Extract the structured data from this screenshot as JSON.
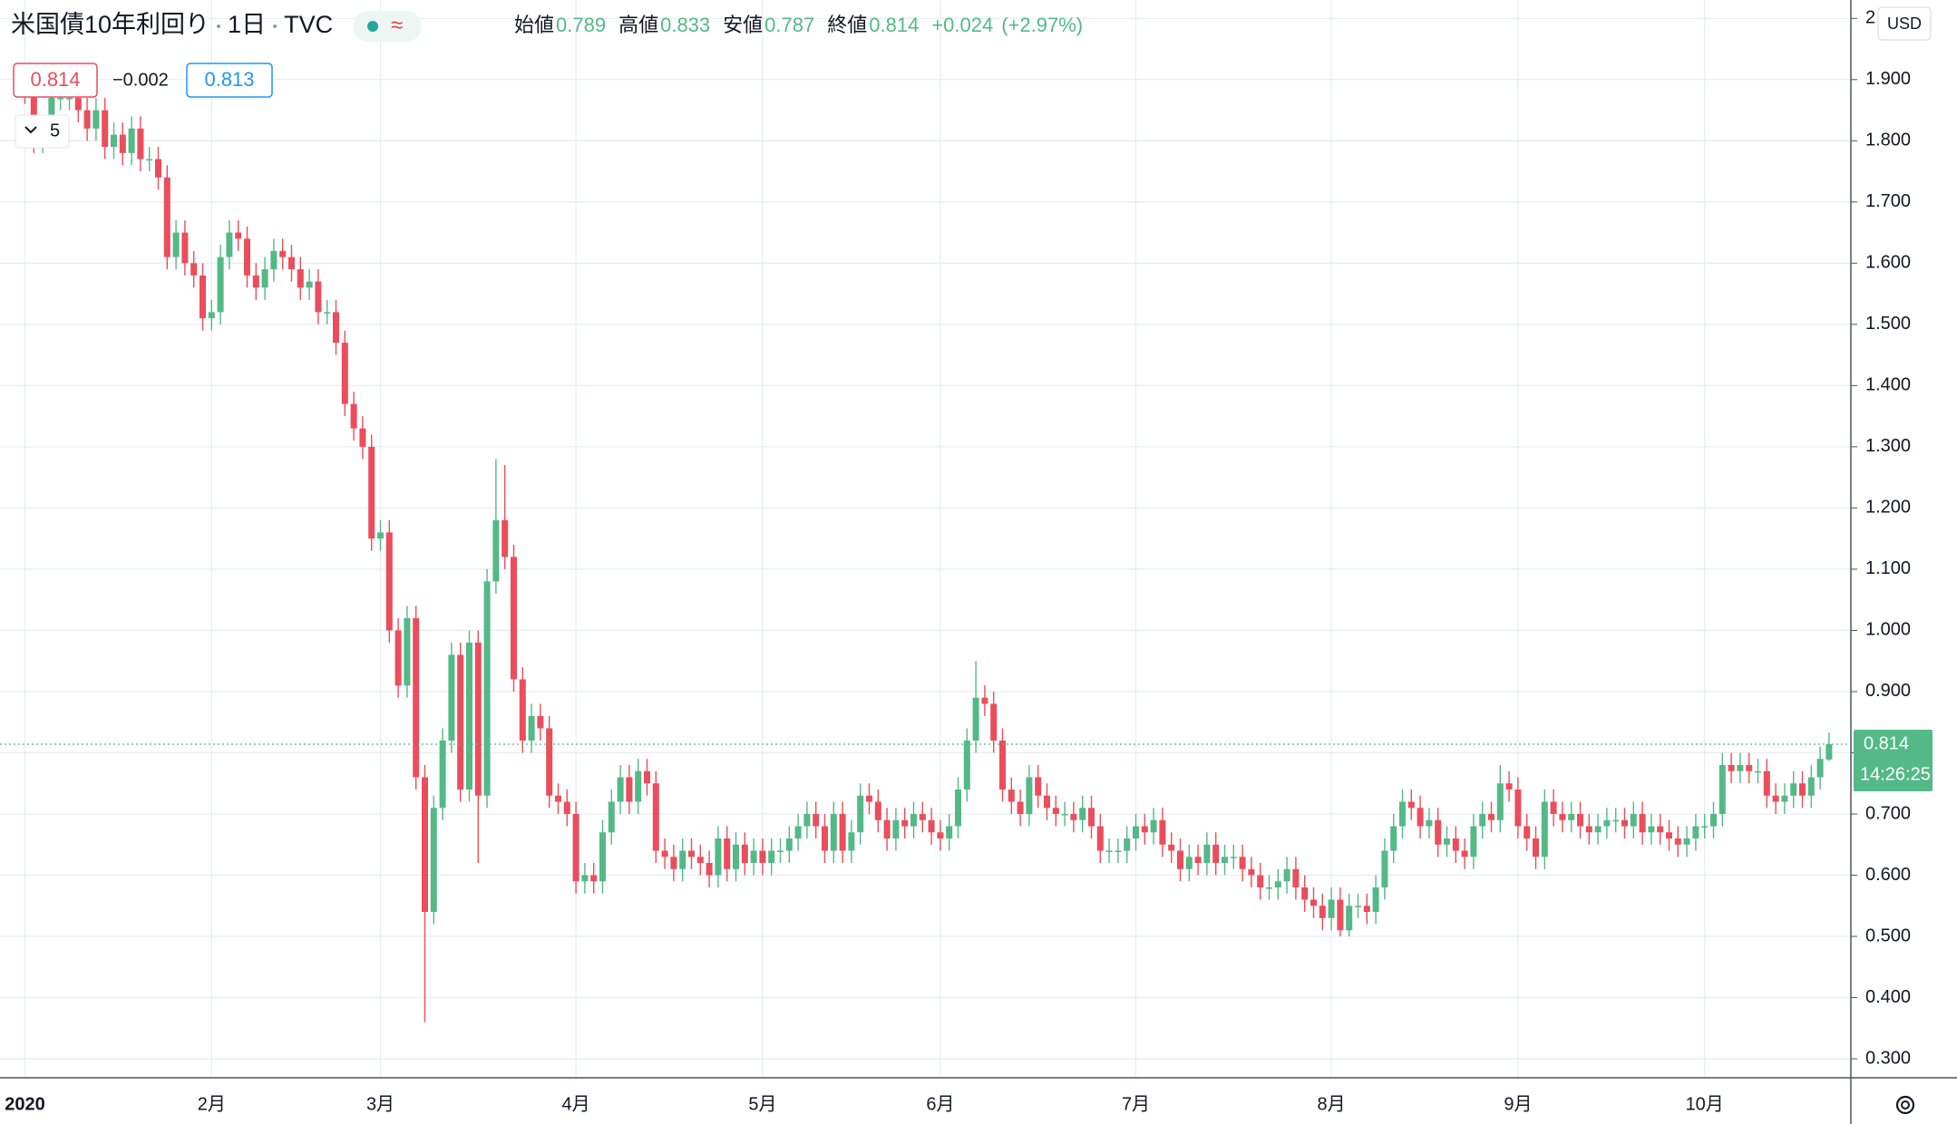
{
  "header": {
    "symbol": "米国債10年利回り",
    "interval": "1日",
    "source": "TVC",
    "open_label": "始値",
    "high_label": "高値",
    "low_label": "安値",
    "close_label": "終値",
    "change": "+0.024",
    "change_pct": "(+2.97%)",
    "spread": "−0.002",
    "ask": 0.813,
    "lines": 5,
    "currency": "USD",
    "countdown": "14:26:25"
  },
  "chart_data": {
    "type": "candlestick",
    "up_color": "#53b987",
    "down_color": "#eb4d5c",
    "grid": true,
    "ylim": [
      0.269,
      2.03
    ],
    "yticks": [
      {
        "value": 0.3,
        "label": "0.300"
      },
      {
        "value": 0.4,
        "label": "0.400"
      },
      {
        "value": 0.5,
        "label": "0.500"
      },
      {
        "value": 0.6,
        "label": "0.600"
      },
      {
        "value": 0.7,
        "label": "0.700"
      },
      {
        "value": 0.8,
        "label": "0.800"
      },
      {
        "value": 0.9,
        "label": "0.900"
      },
      {
        "value": 1.0,
        "label": "1.000"
      },
      {
        "value": 1.1,
        "label": "1.100"
      },
      {
        "value": 1.2,
        "label": "1.200"
      },
      {
        "value": 1.3,
        "label": "1.300"
      },
      {
        "value": 1.4,
        "label": "1.400"
      },
      {
        "value": 1.5,
        "label": "1.500"
      },
      {
        "value": 1.6,
        "label": "1.600"
      },
      {
        "value": 1.7,
        "label": "1.700"
      },
      {
        "value": 1.8,
        "label": "1.800"
      },
      {
        "value": 1.9,
        "label": "1.900"
      },
      2
    ],
    "categories": [
      "2020",
      null,
      null,
      null,
      null,
      null,
      null,
      null,
      null,
      null,
      null,
      null,
      null,
      null,
      null,
      null,
      null,
      null,
      null,
      null,
      null,
      "2月",
      null,
      null,
      null,
      null,
      null,
      null,
      null,
      null,
      null,
      null,
      null,
      null,
      null,
      null,
      null,
      null,
      null,
      null,
      "3月",
      null,
      null,
      null,
      null,
      null,
      null,
      null,
      null,
      null,
      null,
      null,
      null,
      null,
      null,
      null,
      null,
      null,
      null,
      null,
      null,
      null,
      "4月",
      null,
      null,
      null,
      null,
      null,
      null,
      null,
      null,
      null,
      null,
      null,
      null,
      null,
      null,
      null,
      null,
      null,
      null,
      null,
      null,
      "5月",
      null,
      null,
      null,
      null,
      null,
      null,
      null,
      null,
      null,
      null,
      null,
      null,
      null,
      null,
      null,
      null,
      null,
      null,
      null,
      "6月",
      null,
      null,
      null,
      null,
      null,
      null,
      null,
      null,
      null,
      null,
      null,
      null,
      null,
      null,
      null,
      null,
      null,
      null,
      null,
      null,
      null,
      "7月",
      null,
      null,
      null,
      null,
      null,
      null,
      null,
      null,
      null,
      null,
      null,
      null,
      null,
      null,
      null,
      null,
      null,
      null,
      null,
      null,
      null,
      "8月",
      null,
      null,
      null,
      null,
      null,
      null,
      null,
      null,
      null,
      null,
      null,
      null,
      null,
      null,
      null,
      null,
      null,
      null,
      null,
      null,
      "9月",
      null,
      null,
      null,
      null,
      null,
      null,
      null,
      null,
      null,
      null,
      null,
      null,
      null,
      null,
      null,
      null,
      null,
      null,
      null,
      null,
      "10月",
      null,
      null,
      null,
      null,
      null,
      null,
      null,
      null,
      null,
      null,
      null,
      null,
      null,
      null
    ],
    "open": [
      1.9,
      1.88,
      1.8,
      1.81,
      1.87,
      1.87,
      1.87,
      1.85,
      1.82,
      1.85,
      1.79,
      1.81,
      1.78,
      1.82,
      1.77,
      1.77,
      1.74,
      1.61,
      1.65,
      1.6,
      1.58,
      1.51,
      1.52,
      1.61,
      1.65,
      1.64,
      1.58,
      1.56,
      1.59,
      1.62,
      1.61,
      1.59,
      1.56,
      1.57,
      1.52,
      1.52,
      1.47,
      1.37,
      1.33,
      1.3,
      1.15,
      1.16,
      1.0,
      0.91,
      1.02,
      0.76,
      0.54,
      0.71,
      0.82,
      0.96,
      0.74,
      0.98,
      0.73,
      1.08,
      1.18,
      1.12,
      0.92,
      0.82,
      0.86,
      0.84,
      0.73,
      0.72,
      0.7,
      0.59,
      0.6,
      0.59,
      0.67,
      0.72,
      0.76,
      0.72,
      0.77,
      0.75,
      0.64,
      0.63,
      0.61,
      0.64,
      0.63,
      0.62,
      0.6,
      0.66,
      0.61,
      0.65,
      0.62,
      0.64,
      0.62,
      0.64,
      0.64,
      0.66,
      0.68,
      0.7,
      0.68,
      0.64,
      0.7,
      0.64,
      0.67,
      0.73,
      0.72,
      0.69,
      0.66,
      0.69,
      0.68,
      0.7,
      0.69,
      0.67,
      0.66,
      0.68,
      0.74,
      0.82,
      0.89,
      0.88,
      0.82,
      0.74,
      0.72,
      0.7,
      0.76,
      0.73,
      0.71,
      0.7,
      0.7,
      0.69,
      0.71,
      0.68,
      0.64,
      0.64,
      0.64,
      0.66,
      0.68,
      0.67,
      0.69,
      0.65,
      0.64,
      0.61,
      0.63,
      0.62,
      0.65,
      0.62,
      0.63,
      0.63,
      0.61,
      0.6,
      0.58,
      0.58,
      0.59,
      0.61,
      0.58,
      0.56,
      0.55,
      0.53,
      0.56,
      0.51,
      0.55,
      0.55,
      0.54,
      0.58,
      0.64,
      0.68,
      0.72,
      0.71,
      0.68,
      0.69,
      0.65,
      0.66,
      0.64,
      0.63,
      0.68,
      0.7,
      0.69,
      0.75,
      0.74,
      0.68,
      0.66,
      0.63,
      0.72,
      0.7,
      0.69,
      0.7,
      0.68,
      0.67,
      0.68,
      0.69,
      0.69,
      0.68,
      0.7,
      0.67,
      0.68,
      0.67,
      0.66,
      0.65,
      0.66,
      0.68,
      0.68,
      0.7,
      0.78,
      0.77,
      0.78,
      0.77,
      0.77,
      0.73,
      0.72,
      0.73,
      0.75,
      0.73,
      0.76,
      0.789
    ],
    "high": [
      1.92,
      1.9,
      1.83,
      1.89,
      1.89,
      1.89,
      1.89,
      1.87,
      1.87,
      1.87,
      1.83,
      1.83,
      1.84,
      1.84,
      1.79,
      1.79,
      1.76,
      1.67,
      1.67,
      1.62,
      1.6,
      1.54,
      1.63,
      1.67,
      1.67,
      1.66,
      1.6,
      1.61,
      1.64,
      1.64,
      1.63,
      1.61,
      1.59,
      1.59,
      1.54,
      1.54,
      1.49,
      1.39,
      1.35,
      1.32,
      1.18,
      1.18,
      1.02,
      1.04,
      1.04,
      0.78,
      0.73,
      0.84,
      0.98,
      0.98,
      1.0,
      1.0,
      1.1,
      1.28,
      1.27,
      1.14,
      0.94,
      0.88,
      0.88,
      0.86,
      0.75,
      0.74,
      0.72,
      0.62,
      0.62,
      0.69,
      0.74,
      0.78,
      0.78,
      0.79,
      0.79,
      0.77,
      0.66,
      0.65,
      0.66,
      0.66,
      0.65,
      0.64,
      0.68,
      0.68,
      0.67,
      0.67,
      0.66,
      0.66,
      0.66,
      0.66,
      0.68,
      0.7,
      0.72,
      0.72,
      0.7,
      0.72,
      0.72,
      0.69,
      0.75,
      0.75,
      0.74,
      0.71,
      0.71,
      0.71,
      0.72,
      0.72,
      0.71,
      0.69,
      0.7,
      0.76,
      0.84,
      0.95,
      0.91,
      0.9,
      0.84,
      0.76,
      0.74,
      0.78,
      0.78,
      0.75,
      0.73,
      0.72,
      0.72,
      0.73,
      0.73,
      0.7,
      0.66,
      0.66,
      0.68,
      0.7,
      0.7,
      0.71,
      0.71,
      0.67,
      0.66,
      0.65,
      0.65,
      0.67,
      0.67,
      0.65,
      0.65,
      0.65,
      0.63,
      0.62,
      0.6,
      0.61,
      0.63,
      0.63,
      0.6,
      0.58,
      0.57,
      0.58,
      0.58,
      0.57,
      0.57,
      0.57,
      0.6,
      0.66,
      0.7,
      0.74,
      0.74,
      0.73,
      0.71,
      0.71,
      0.68,
      0.68,
      0.66,
      0.7,
      0.72,
      0.72,
      0.78,
      0.77,
      0.76,
      0.7,
      0.68,
      0.74,
      0.74,
      0.72,
      0.72,
      0.72,
      0.7,
      0.7,
      0.71,
      0.71,
      0.71,
      0.72,
      0.72,
      0.7,
      0.7,
      0.69,
      0.68,
      0.68,
      0.7,
      0.7,
      0.72,
      0.8,
      0.8,
      0.8,
      0.8,
      0.79,
      0.79,
      0.75,
      0.75,
      0.77,
      0.77,
      0.78,
      0.81,
      0.833
    ],
    "low": [
      1.86,
      1.78,
      1.78,
      1.79,
      1.85,
      1.85,
      1.83,
      1.8,
      1.8,
      1.77,
      1.77,
      1.76,
      1.76,
      1.75,
      1.75,
      1.72,
      1.59,
      1.59,
      1.58,
      1.56,
      1.49,
      1.49,
      1.5,
      1.59,
      1.62,
      1.56,
      1.54,
      1.54,
      1.57,
      1.59,
      1.57,
      1.54,
      1.54,
      1.5,
      1.5,
      1.45,
      1.35,
      1.31,
      1.28,
      1.13,
      1.13,
      0.98,
      0.89,
      0.89,
      0.74,
      0.36,
      0.52,
      0.69,
      0.8,
      0.72,
      0.72,
      0.62,
      0.71,
      1.06,
      1.1,
      0.9,
      0.8,
      0.8,
      0.82,
      0.71,
      0.7,
      0.68,
      0.57,
      0.57,
      0.57,
      0.57,
      0.65,
      0.7,
      0.7,
      0.7,
      0.73,
      0.62,
      0.61,
      0.59,
      0.59,
      0.61,
      0.6,
      0.58,
      0.58,
      0.59,
      0.59,
      0.6,
      0.6,
      0.6,
      0.6,
      0.62,
      0.62,
      0.64,
      0.66,
      0.66,
      0.62,
      0.62,
      0.62,
      0.62,
      0.65,
      0.7,
      0.67,
      0.64,
      0.64,
      0.66,
      0.66,
      0.67,
      0.65,
      0.64,
      0.64,
      0.66,
      0.72,
      0.8,
      0.86,
      0.8,
      0.72,
      0.7,
      0.68,
      0.68,
      0.71,
      0.69,
      0.68,
      0.68,
      0.67,
      0.67,
      0.66,
      0.62,
      0.62,
      0.62,
      0.62,
      0.64,
      0.65,
      0.65,
      0.63,
      0.62,
      0.59,
      0.59,
      0.6,
      0.6,
      0.6,
      0.6,
      0.61,
      0.59,
      0.58,
      0.56,
      0.56,
      0.56,
      0.57,
      0.56,
      0.54,
      0.53,
      0.51,
      0.51,
      0.5,
      0.5,
      0.53,
      0.52,
      0.52,
      0.56,
      0.62,
      0.66,
      0.69,
      0.66,
      0.66,
      0.63,
      0.63,
      0.62,
      0.61,
      0.61,
      0.66,
      0.67,
      0.67,
      0.72,
      0.66,
      0.64,
      0.61,
      0.61,
      0.68,
      0.67,
      0.67,
      0.66,
      0.65,
      0.65,
      0.66,
      0.67,
      0.66,
      0.66,
      0.65,
      0.65,
      0.65,
      0.64,
      0.63,
      0.63,
      0.64,
      0.66,
      0.66,
      0.68,
      0.75,
      0.75,
      0.75,
      0.75,
      0.71,
      0.7,
      0.7,
      0.71,
      0.71,
      0.71,
      0.74,
      0.787
    ],
    "close": [
      1.88,
      1.8,
      1.81,
      1.87,
      1.87,
      1.87,
      1.85,
      1.82,
      1.85,
      1.79,
      1.81,
      1.78,
      1.82,
      1.77,
      1.77,
      1.74,
      1.61,
      1.65,
      1.6,
      1.58,
      1.51,
      1.52,
      1.61,
      1.65,
      1.64,
      1.58,
      1.56,
      1.59,
      1.62,
      1.61,
      1.59,
      1.56,
      1.57,
      1.52,
      1.52,
      1.47,
      1.37,
      1.33,
      1.3,
      1.15,
      1.16,
      1.0,
      0.91,
      1.02,
      0.76,
      0.54,
      0.71,
      0.82,
      0.96,
      0.74,
      0.98,
      0.73,
      1.08,
      1.18,
      1.12,
      0.92,
      0.82,
      0.86,
      0.84,
      0.73,
      0.72,
      0.7,
      0.59,
      0.6,
      0.59,
      0.67,
      0.72,
      0.76,
      0.72,
      0.77,
      0.75,
      0.64,
      0.63,
      0.61,
      0.64,
      0.63,
      0.62,
      0.6,
      0.66,
      0.61,
      0.65,
      0.62,
      0.64,
      0.62,
      0.64,
      0.64,
      0.66,
      0.68,
      0.7,
      0.68,
      0.64,
      0.7,
      0.64,
      0.67,
      0.73,
      0.72,
      0.69,
      0.66,
      0.69,
      0.68,
      0.7,
      0.69,
      0.67,
      0.66,
      0.68,
      0.74,
      0.82,
      0.89,
      0.88,
      0.82,
      0.74,
      0.72,
      0.7,
      0.76,
      0.73,
      0.71,
      0.7,
      0.7,
      0.69,
      0.71,
      0.68,
      0.64,
      0.64,
      0.64,
      0.66,
      0.68,
      0.67,
      0.69,
      0.65,
      0.64,
      0.61,
      0.63,
      0.62,
      0.65,
      0.62,
      0.63,
      0.63,
      0.61,
      0.6,
      0.58,
      0.58,
      0.59,
      0.61,
      0.58,
      0.56,
      0.55,
      0.53,
      0.56,
      0.51,
      0.55,
      0.55,
      0.54,
      0.58,
      0.64,
      0.68,
      0.72,
      0.71,
      0.68,
      0.69,
      0.65,
      0.66,
      0.64,
      0.63,
      0.68,
      0.7,
      0.69,
      0.75,
      0.74,
      0.68,
      0.66,
      0.63,
      0.72,
      0.7,
      0.69,
      0.7,
      0.68,
      0.67,
      0.68,
      0.69,
      0.69,
      0.68,
      0.7,
      0.67,
      0.68,
      0.67,
      0.66,
      0.65,
      0.66,
      0.68,
      0.68,
      0.7,
      0.78,
      0.77,
      0.78,
      0.77,
      0.77,
      0.73,
      0.72,
      0.73,
      0.75,
      0.73,
      0.76,
      0.79,
      0.814
    ]
  }
}
